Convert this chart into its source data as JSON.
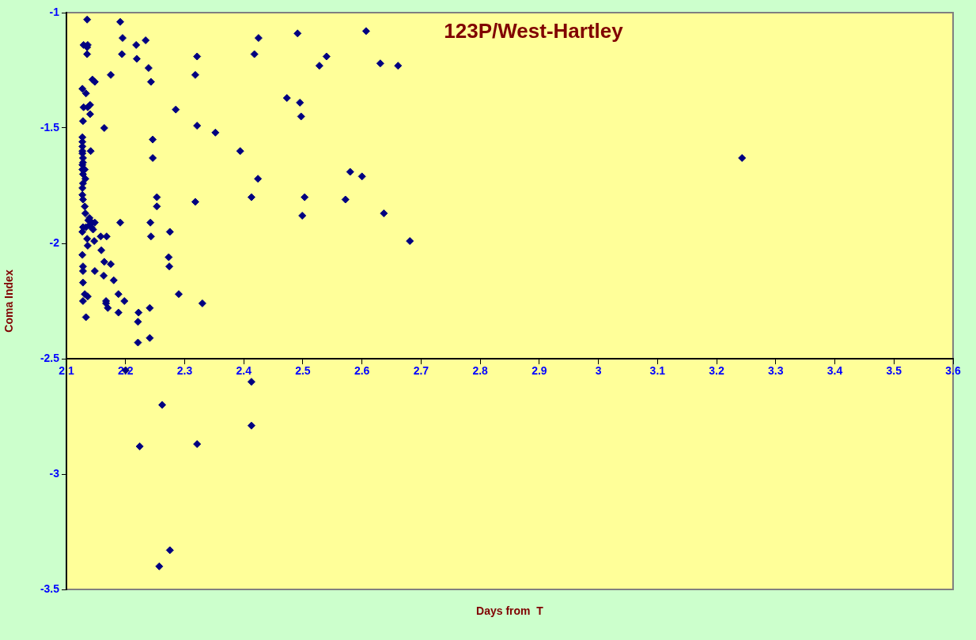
{
  "chart_data": {
    "type": "scatter",
    "title": "123P/West-Hartley",
    "xlabel": "Days from  T",
    "ylabel": "Coma Index",
    "xlim": [
      2.1,
      3.6
    ],
    "xticks": [
      2.1,
      2.2,
      2.3,
      2.4,
      2.5,
      2.6,
      2.7,
      2.8,
      2.9,
      3,
      3.1,
      3.2,
      3.3,
      3.4,
      3.5,
      3.6
    ],
    "ylim": [
      -3.5,
      -1
    ],
    "yticks": [
      -3.5,
      -3,
      -2.5,
      -2,
      -1.5,
      -1
    ],
    "grid": false,
    "legend": false,
    "marker": "diamond",
    "series": [
      {
        "color": "#000080",
        "x": [
          2.135,
          2.191,
          2.195,
          2.234,
          2.129,
          2.136,
          2.135,
          2.218,
          2.135,
          2.194,
          2.219,
          2.321,
          2.239,
          2.175,
          2.318,
          2.144,
          2.148,
          2.243,
          2.127,
          2.133,
          2.14,
          2.136,
          2.129,
          2.285,
          2.14,
          2.128,
          2.164,
          2.321,
          2.352,
          2.246,
          2.127,
          2.127,
          2.127,
          2.127,
          2.141,
          2.246,
          2.127,
          2.128,
          2.128,
          2.127,
          2.127,
          2.131,
          2.128,
          2.132,
          2.128,
          2.127,
          2.127,
          2.128,
          2.131,
          2.132,
          2.253,
          2.318,
          2.253,
          2.191,
          2.242,
          2.143,
          2.14,
          2.145,
          2.127,
          2.275,
          2.158,
          2.168,
          2.243,
          2.135,
          2.147,
          2.136,
          2.159,
          2.127,
          2.273,
          2.164,
          2.175,
          2.274,
          2.128,
          2.128,
          2.148,
          2.163,
          2.18,
          2.128,
          2.29,
          2.33,
          2.131,
          2.136,
          2.188,
          2.128,
          2.167,
          2.167,
          2.198,
          2.17,
          2.241,
          2.188,
          2.222,
          2.133,
          2.221,
          2.241,
          2.221,
          2.2,
          2.413,
          2.262,
          2.413,
          2.224,
          2.321,
          2.275,
          2.257,
          2.425,
          2.491,
          2.607,
          2.418,
          2.54,
          2.528,
          2.631,
          2.661,
          2.473,
          2.495,
          2.497,
          2.394,
          2.424,
          2.58,
          2.6,
          2.413,
          2.503,
          2.572,
          2.499,
          2.637,
          2.681,
          3.243,
          2.133,
          2.137,
          2.139,
          2.142,
          2.148,
          2.128
        ],
        "values": [
          -1.03,
          -1.04,
          -1.11,
          -1.12,
          -1.14,
          -1.14,
          -1.15,
          -1.14,
          -1.18,
          -1.18,
          -1.2,
          -1.19,
          -1.24,
          -1.27,
          -1.27,
          -1.29,
          -1.3,
          -1.3,
          -1.33,
          -1.35,
          -1.4,
          -1.41,
          -1.41,
          -1.42,
          -1.44,
          -1.47,
          -1.5,
          -1.49,
          -1.52,
          -1.55,
          -1.54,
          -1.56,
          -1.58,
          -1.6,
          -1.6,
          -1.63,
          -1.61,
          -1.63,
          -1.65,
          -1.66,
          -1.68,
          -1.68,
          -1.7,
          -1.72,
          -1.74,
          -1.76,
          -1.79,
          -1.81,
          -1.84,
          -1.87,
          -1.8,
          -1.82,
          -1.84,
          -1.91,
          -1.91,
          -1.91,
          -1.92,
          -1.94,
          -1.95,
          -1.95,
          -1.97,
          -1.97,
          -1.97,
          -1.98,
          -1.99,
          -2.01,
          -2.03,
          -2.05,
          -2.06,
          -2.08,
          -2.09,
          -2.1,
          -2.1,
          -2.12,
          -2.12,
          -2.14,
          -2.16,
          -2.17,
          -2.22,
          -2.26,
          -2.22,
          -2.23,
          -2.22,
          -2.25,
          -2.25,
          -2.26,
          -2.25,
          -2.28,
          -2.28,
          -2.3,
          -2.3,
          -2.32,
          -2.34,
          -2.41,
          -2.43,
          -2.55,
          -2.6,
          -2.7,
          -2.79,
          -2.88,
          -2.87,
          -3.33,
          -3.4,
          -1.11,
          -1.09,
          -1.08,
          -1.18,
          -1.19,
          -1.23,
          -1.22,
          -1.23,
          -1.37,
          -1.39,
          -1.45,
          -1.6,
          -1.72,
          -1.69,
          -1.71,
          -1.8,
          -1.8,
          -1.81,
          -1.88,
          -1.87,
          -1.99,
          -1.63,
          -1.93,
          -1.9,
          -1.89,
          -1.93,
          -1.91,
          -1.93
        ]
      }
    ]
  }
}
